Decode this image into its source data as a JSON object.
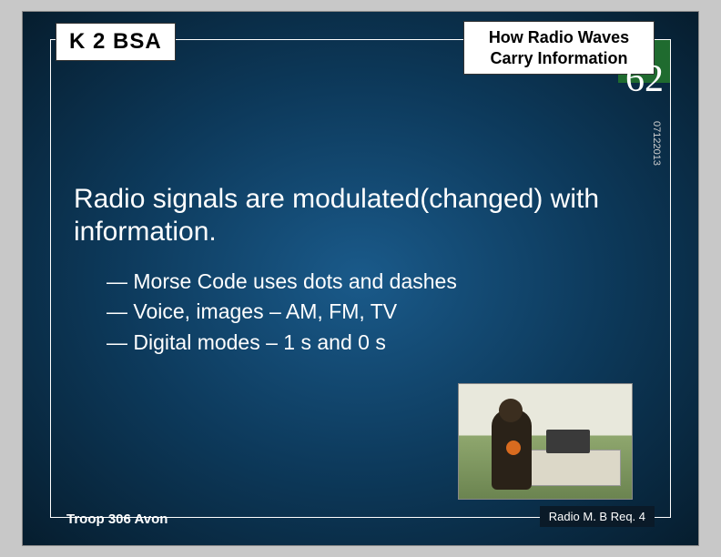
{
  "header": {
    "logo": "K 2 BSA",
    "title": "How Radio Waves Carry Information"
  },
  "slide_number": "62",
  "date_stamp": "07122013",
  "main_text": "Radio signals are modulated(changed) with information.",
  "bullets": [
    "Morse Code uses dots and dashes",
    "Voice, images – AM, FM, TV",
    "Digital modes – 1 s and 0 s"
  ],
  "footer": {
    "left": "Troop 306 Avon",
    "right": "Radio M. B Req. 4"
  },
  "colors": {
    "slide_bg_center": "#1a5a8a",
    "slide_bg_edge": "#061d2e",
    "number_box": "#1f6b2f",
    "text": "#ffffff",
    "page_bg": "#c8c8c8"
  }
}
